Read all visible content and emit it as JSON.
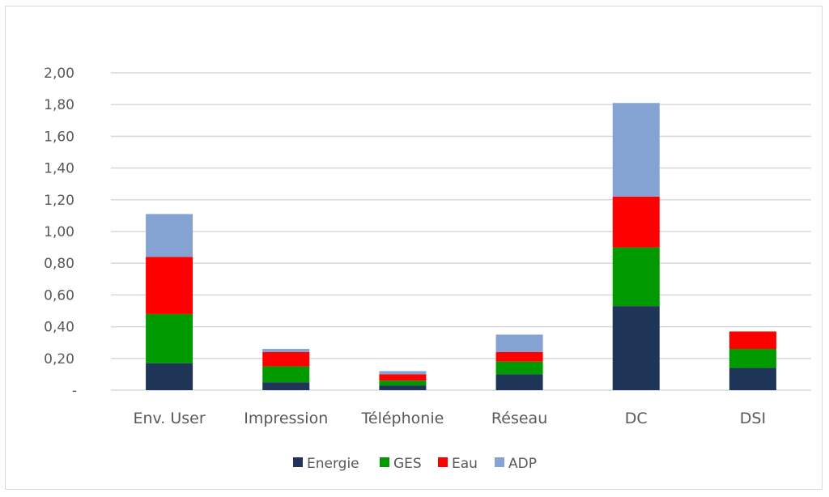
{
  "chart_data": {
    "type": "bar",
    "stacked": true,
    "title": "",
    "xlabel": "",
    "ylabel": "",
    "ylim": [
      0,
      2.0
    ],
    "yticks": [
      0,
      0.2,
      0.4,
      0.6,
      0.8,
      1.0,
      1.2,
      1.4,
      1.6,
      1.8,
      2.0
    ],
    "ytick_labels": [
      "-",
      "0,20",
      "0,40",
      "0,60",
      "0,80",
      "1,00",
      "1,20",
      "1,40",
      "1,60",
      "1,80",
      "2,00"
    ],
    "grid": true,
    "legend_position": "bottom",
    "categories": [
      "Env. User",
      "Impression",
      "Téléphonie",
      "Réseau",
      "DC",
      "DSI"
    ],
    "series": [
      {
        "name": "Energie",
        "color": "#1f3557",
        "values": [
          0.17,
          0.05,
          0.03,
          0.1,
          0.53,
          0.14
        ]
      },
      {
        "name": "GES",
        "color": "#009900",
        "values": [
          0.31,
          0.1,
          0.03,
          0.08,
          0.37,
          0.12
        ]
      },
      {
        "name": "Eau",
        "color": "#ff0000",
        "values": [
          0.36,
          0.09,
          0.04,
          0.06,
          0.32,
          0.11
        ]
      },
      {
        "name": "ADP",
        "color": "#84a2d2",
        "values": [
          0.27,
          0.02,
          0.02,
          0.11,
          0.59,
          0.0
        ]
      }
    ]
  }
}
